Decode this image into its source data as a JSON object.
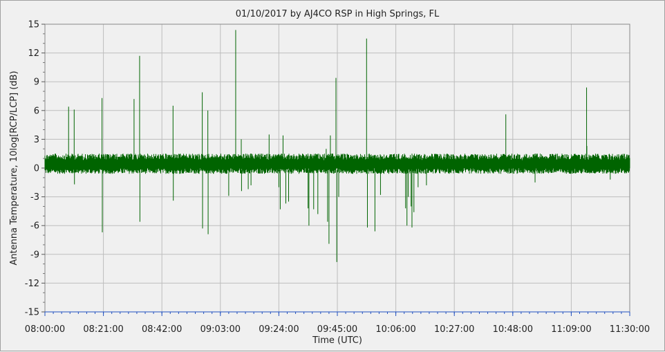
{
  "chart_data": {
    "type": "line",
    "title": "01/10/2017  by  AJ4CO RSP  in  High Springs, FL",
    "xlabel": "Time (UTC)",
    "ylabel": "Antenna Temperature, 10log[RCP/LCP] (dB)",
    "x_tick_labels": [
      "08:00:00",
      "08:21:00",
      "08:42:00",
      "09:03:00",
      "09:24:00",
      "09:45:00",
      "10:06:00",
      "10:27:00",
      "10:48:00",
      "11:09:00",
      "11:30:00"
    ],
    "x_range_minutes": [
      0,
      210
    ],
    "ylim": [
      -15,
      15
    ],
    "y_ticks": [
      15,
      12,
      9,
      6,
      3,
      0,
      -3,
      -6,
      -9,
      -12,
      -15
    ],
    "grid": true,
    "line_color": "#006400",
    "series": [
      {
        "noise_band_db": [
          -0.6,
          1.5
        ],
        "spikes": [
          {
            "t": 8.5,
            "db": 6.4
          },
          {
            "t": 10.5,
            "db": 6.1
          },
          {
            "t": 10.6,
            "db": -1.7
          },
          {
            "t": 20.5,
            "db": 7.3
          },
          {
            "t": 20.6,
            "db": -6.7
          },
          {
            "t": 32.0,
            "db": 7.2
          },
          {
            "t": 34.0,
            "db": 11.7
          },
          {
            "t": 34.1,
            "db": -5.6
          },
          {
            "t": 46.0,
            "db": 6.5
          },
          {
            "t": 46.1,
            "db": -3.4
          },
          {
            "t": 56.5,
            "db": 7.9
          },
          {
            "t": 56.6,
            "db": -6.3
          },
          {
            "t": 58.5,
            "db": 6.0
          },
          {
            "t": 58.6,
            "db": -6.9
          },
          {
            "t": 66.0,
            "db": -2.9
          },
          {
            "t": 68.5,
            "db": 14.4
          },
          {
            "t": 70.5,
            "db": 3.0
          },
          {
            "t": 70.6,
            "db": -2.4
          },
          {
            "t": 73.0,
            "db": -2.2
          },
          {
            "t": 74.0,
            "db": -1.8
          },
          {
            "t": 80.5,
            "db": 3.5
          },
          {
            "t": 84.0,
            "db": -2.0
          },
          {
            "t": 84.5,
            "db": -4.3
          },
          {
            "t": 85.5,
            "db": 3.4
          },
          {
            "t": 86.5,
            "db": -3.7
          },
          {
            "t": 87.5,
            "db": -3.5
          },
          {
            "t": 94.5,
            "db": -4.2
          },
          {
            "t": 94.8,
            "db": -6.0
          },
          {
            "t": 96.5,
            "db": -4.3
          },
          {
            "t": 98.0,
            "db": -4.8
          },
          {
            "t": 101.0,
            "db": 2.0
          },
          {
            "t": 101.5,
            "db": -5.6
          },
          {
            "t": 102.0,
            "db": -7.9
          },
          {
            "t": 102.5,
            "db": 3.4
          },
          {
            "t": 104.5,
            "db": 9.4
          },
          {
            "t": 104.8,
            "db": -9.8
          },
          {
            "t": 105.5,
            "db": -3.0
          },
          {
            "t": 115.5,
            "db": 13.5
          },
          {
            "t": 115.8,
            "db": -6.2
          },
          {
            "t": 118.5,
            "db": -6.6
          },
          {
            "t": 120.5,
            "db": -2.8
          },
          {
            "t": 129.5,
            "db": -4.2
          },
          {
            "t": 130.0,
            "db": -6.0
          },
          {
            "t": 130.5,
            "db": -3.0
          },
          {
            "t": 131.5,
            "db": -4.0
          },
          {
            "t": 131.8,
            "db": -6.2
          },
          {
            "t": 132.5,
            "db": -4.6
          },
          {
            "t": 134.0,
            "db": -2.0
          },
          {
            "t": 137.0,
            "db": -1.8
          },
          {
            "t": 165.5,
            "db": 5.6
          },
          {
            "t": 176.0,
            "db": -1.5
          },
          {
            "t": 194.5,
            "db": 8.4
          },
          {
            "t": 194.6,
            "db": 2.3
          },
          {
            "t": 203.0,
            "db": -1.2
          }
        ]
      }
    ]
  }
}
